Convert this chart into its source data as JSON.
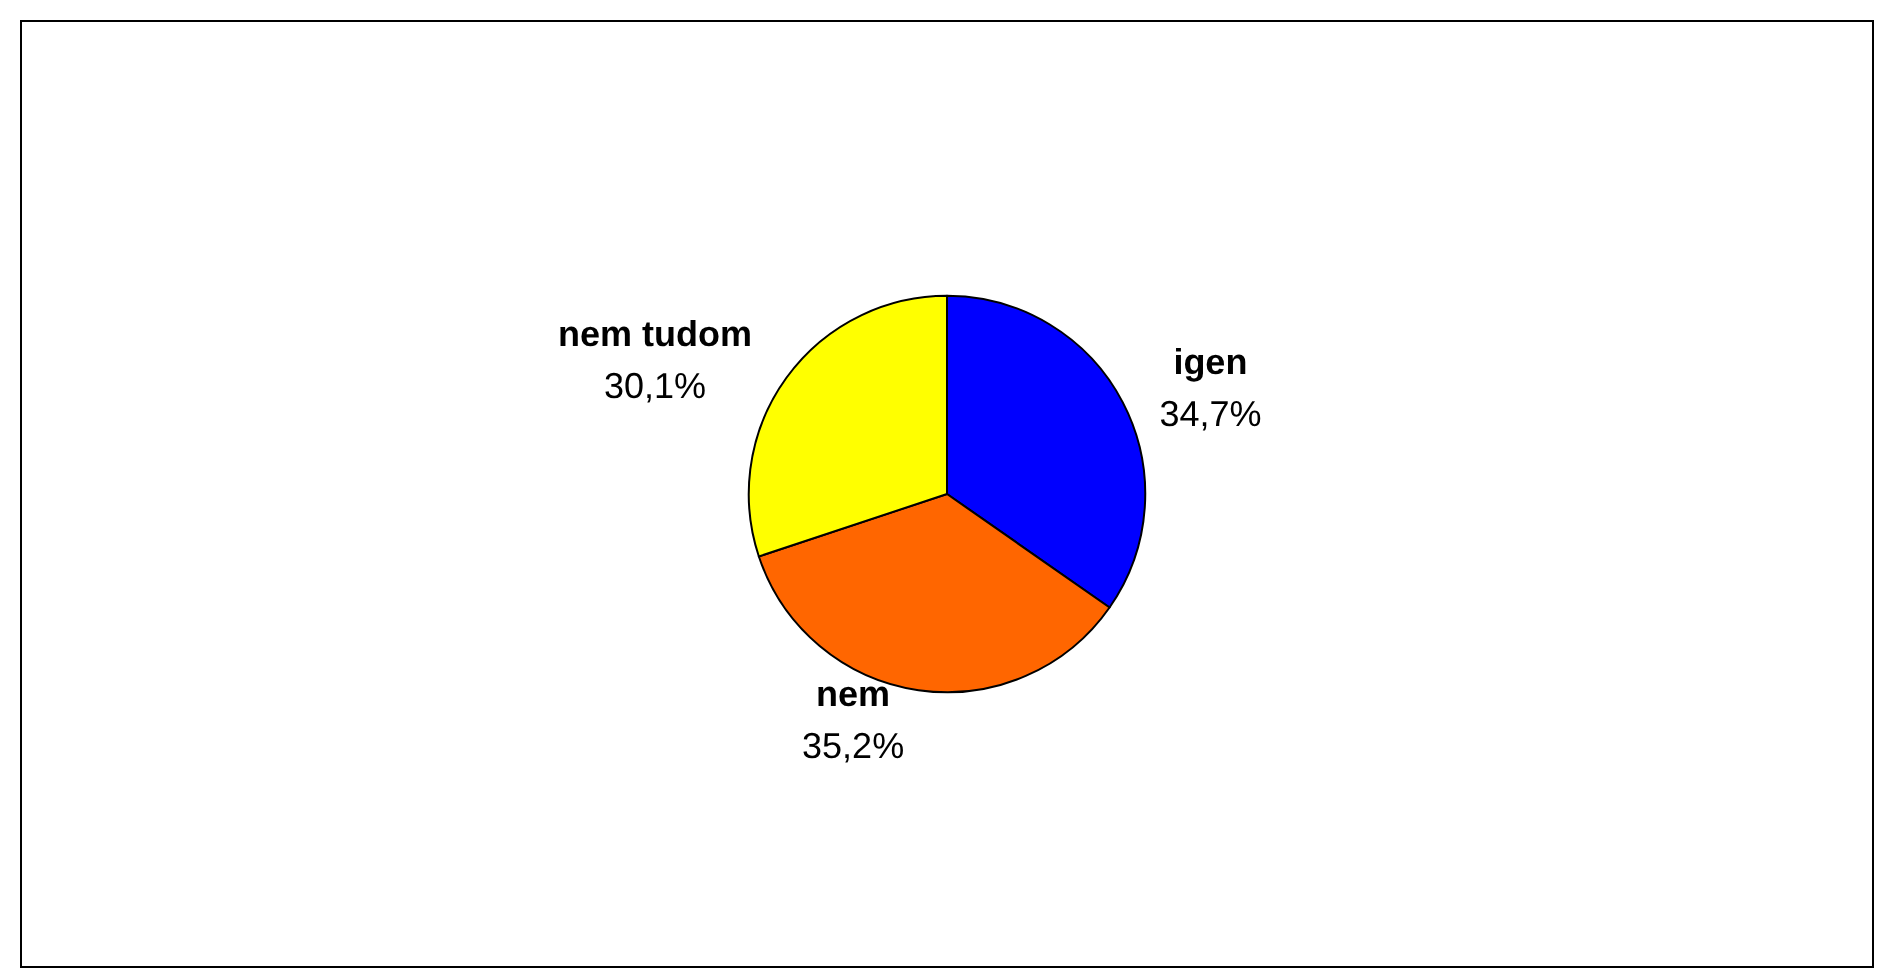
{
  "chart_data": {
    "type": "pie",
    "categories": [
      "igen",
      "nem",
      "nem tudom"
    ],
    "values": [
      34.7,
      35.2,
      30.1
    ],
    "colors": [
      "#0000ff",
      "#ff6600",
      "#ffff00"
    ],
    "value_labels": [
      "34,7%",
      "35,2%",
      "30,1%"
    ],
    "legend": false
  }
}
